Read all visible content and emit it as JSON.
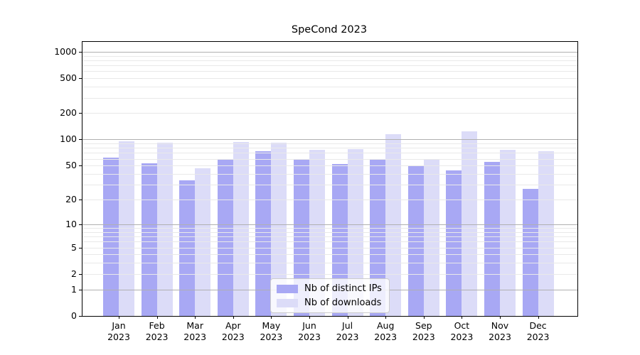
{
  "chart_data": {
    "type": "bar",
    "title": "SpeCond 2023",
    "scale": "log10(1+y)",
    "categories": [
      "Jan",
      "Feb",
      "Mar",
      "Apr",
      "May",
      "Jun",
      "Jul",
      "Aug",
      "Sep",
      "Oct",
      "Nov",
      "Dec"
    ],
    "year_label": "2023",
    "series": [
      {
        "id": "distinct-ips",
        "name": "Nb of distinct IPs",
        "color": "#a8a8f4",
        "values": [
          62,
          53,
          34,
          59,
          73,
          58,
          52,
          60,
          50,
          44,
          55,
          27
        ]
      },
      {
        "id": "downloads",
        "name": "Nb of downloads",
        "color": "#dcdcf8",
        "values": [
          96,
          92,
          47,
          94,
          91,
          76,
          78,
          116,
          59,
          125,
          76,
          73
        ]
      }
    ],
    "yticks": [
      0,
      1,
      2,
      5,
      10,
      20,
      50,
      100,
      200,
      500,
      1000
    ],
    "ylim": [
      0,
      1100
    ],
    "major_gridlines": [
      1,
      10,
      100,
      1000
    ],
    "minor_gridlines": [
      2,
      3,
      4,
      5,
      6,
      7,
      8,
      9,
      20,
      30,
      40,
      50,
      60,
      70,
      80,
      90,
      200,
      300,
      400,
      500,
      600,
      700,
      800,
      900
    ],
    "legend": {
      "position": "lower-center",
      "entries": [
        "Nb of distinct IPs",
        "Nb of downloads"
      ]
    },
    "grid": true,
    "xlabel": "",
    "ylabel": ""
  }
}
